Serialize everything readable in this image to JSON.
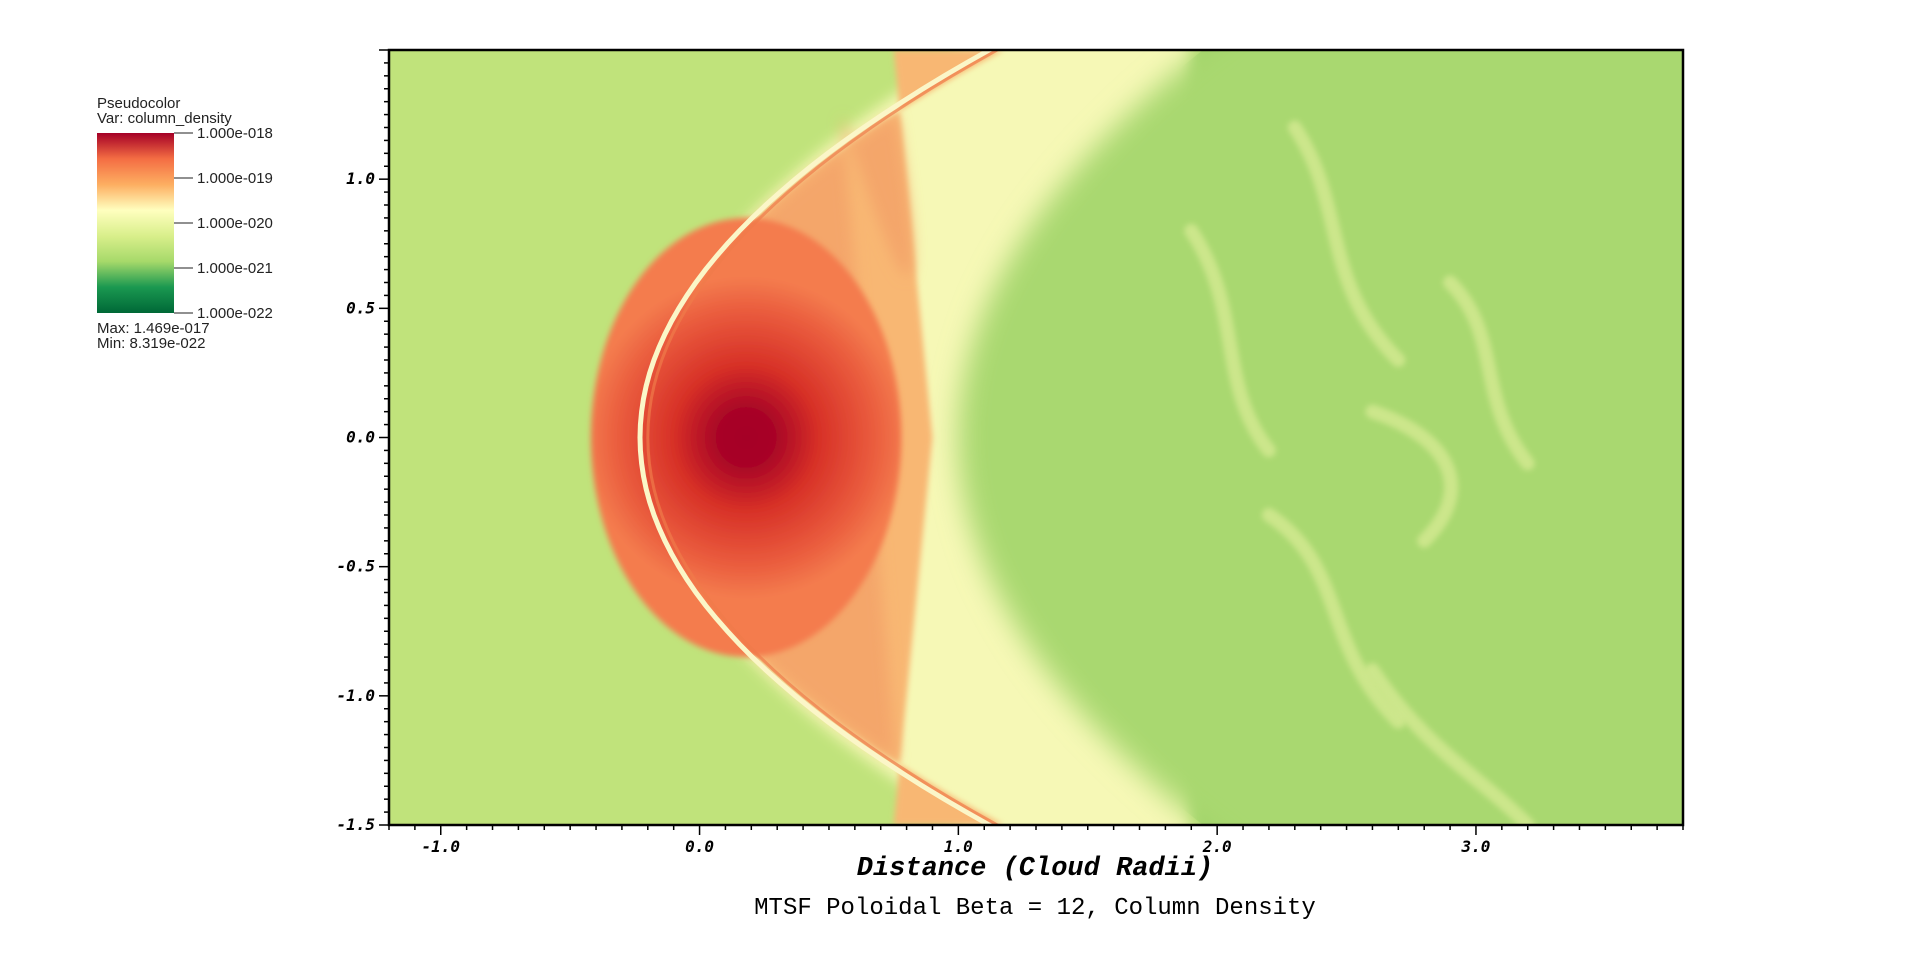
{
  "legend": {
    "plot_type": "Pseudocolor",
    "var_line": "Var: column_density",
    "tick_labels": [
      "1.000e-018",
      "1.000e-019",
      "1.000e-020",
      "1.000e-021",
      "1.000e-022"
    ],
    "max_line": "Max:  1.469e-017",
    "min_line": "Min:  8.319e-022",
    "colormap": [
      "#a50026",
      "#f46d43",
      "#fdae61",
      "#ffffbf",
      "#d9ef8b",
      "#a6d96a",
      "#1a9850",
      "#006837"
    ]
  },
  "chart_data": {
    "type": "heatmap",
    "title": "MTSF Poloidal Beta = 12, Column Density",
    "xlabel": "Distance (Cloud Radii)",
    "ylabel": "",
    "xlim": [
      -1.2,
      3.8
    ],
    "ylim": [
      -1.5,
      1.5
    ],
    "x_ticks": [
      -1.0,
      0.0,
      1.0,
      2.0,
      3.0
    ],
    "x_tick_labels": [
      "-1.0",
      "0.0",
      "1.0",
      "2.0",
      "3.0"
    ],
    "y_ticks": [
      1.0,
      0.5,
      0.0,
      -0.5,
      -1.0,
      -1.5
    ],
    "y_tick_labels": [
      "1.0",
      "0.5",
      "0.0",
      "-0.5",
      "-1.0",
      "-1.5"
    ],
    "variable": "column_density",
    "scale": "log",
    "colorbar_range": [
      1e-22,
      1e-18
    ],
    "max_value": 1.469e-17,
    "min_value": 8.319e-22,
    "features": {
      "core_center": [
        0.18,
        0.0
      ],
      "bow_shock_apex_x": -0.23,
      "inner_front_apex_x": 0.82,
      "outer_sheath_apex_x": 1.0
    },
    "grid": false
  }
}
